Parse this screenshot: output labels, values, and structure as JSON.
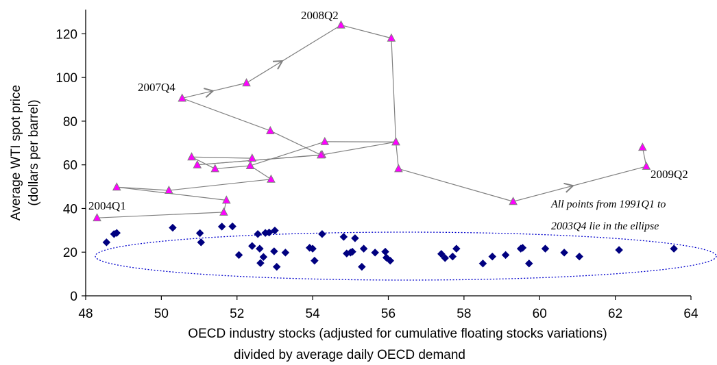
{
  "chart_data": {
    "type": "scatter",
    "title": "",
    "xlabel_lines": [
      "OECD industry stocks (adjusted for cumulative floating stocks variations)",
      "divided by average daily OECD demand"
    ],
    "ylabel_lines": [
      "Average WTI spot price",
      "(dollars per barrel)"
    ],
    "xlim": [
      48,
      64
    ],
    "ylim": [
      0,
      130
    ],
    "x_ticks": [
      48,
      50,
      52,
      54,
      56,
      58,
      60,
      62,
      64
    ],
    "y_ticks": [
      0,
      20,
      40,
      60,
      80,
      100,
      120
    ],
    "grid": false,
    "series": [
      {
        "marker": "diamond",
        "color": "#000080",
        "points": [
          [
            48.55,
            24.5
          ],
          [
            48.75,
            28.3
          ],
          [
            48.82,
            28.8
          ],
          [
            50.3,
            31.2
          ],
          [
            51.02,
            28.7
          ],
          [
            51.05,
            24.5
          ],
          [
            51.6,
            31.7
          ],
          [
            51.88,
            31.8
          ],
          [
            52.05,
            18.7
          ],
          [
            52.4,
            22.8
          ],
          [
            52.55,
            28.3
          ],
          [
            52.6,
            21.6
          ],
          [
            52.62,
            15.0
          ],
          [
            52.7,
            17.8
          ],
          [
            52.75,
            28.8
          ],
          [
            52.85,
            29.0
          ],
          [
            52.98,
            20.4
          ],
          [
            53.0,
            29.9
          ],
          [
            53.05,
            13.3
          ],
          [
            53.28,
            19.8
          ],
          [
            53.92,
            22.0
          ],
          [
            54.0,
            21.6
          ],
          [
            54.05,
            16.1
          ],
          [
            54.25,
            28.3
          ],
          [
            54.82,
            27.0
          ],
          [
            54.9,
            19.4
          ],
          [
            55.0,
            19.8
          ],
          [
            55.05,
            20.2
          ],
          [
            55.12,
            26.4
          ],
          [
            55.3,
            13.3
          ],
          [
            55.35,
            21.6
          ],
          [
            55.65,
            19.8
          ],
          [
            55.92,
            20.2
          ],
          [
            55.95,
            17.5
          ],
          [
            56.05,
            16.1
          ],
          [
            57.4,
            19.2
          ],
          [
            57.5,
            17.3
          ],
          [
            57.7,
            18.0
          ],
          [
            57.8,
            21.6
          ],
          [
            58.5,
            14.8
          ],
          [
            58.75,
            18.0
          ],
          [
            59.1,
            18.7
          ],
          [
            59.5,
            21.6
          ],
          [
            59.55,
            22.0
          ],
          [
            59.72,
            14.8
          ],
          [
            60.15,
            21.6
          ],
          [
            60.65,
            19.8
          ],
          [
            61.05,
            18.0
          ],
          [
            62.1,
            21.0
          ],
          [
            63.55,
            21.6
          ]
        ]
      },
      {
        "marker": "triangle",
        "color": "#ff00ff",
        "connected": true,
        "points": [
          [
            48.3,
            35.7
          ],
          [
            51.65,
            38.3
          ],
          [
            51.72,
            43.8
          ],
          [
            48.82,
            49.8
          ],
          [
            50.2,
            48.3
          ],
          [
            52.9,
            53.4
          ],
          [
            52.35,
            59.6
          ],
          [
            51.42,
            58.2
          ],
          [
            50.8,
            63.6
          ],
          [
            52.4,
            63.0
          ],
          [
            52.35,
            59.6
          ],
          [
            54.32,
            70.6
          ],
          [
            56.2,
            70.5
          ],
          [
            54.25,
            64.6
          ],
          [
            50.95,
            60.0
          ],
          [
            54.22,
            64.5
          ],
          [
            52.88,
            75.6
          ],
          [
            50.55,
            90.5
          ],
          [
            52.25,
            97.5
          ],
          [
            54.75,
            124.0
          ],
          [
            56.08,
            118.0
          ],
          [
            56.2,
            70.5
          ],
          [
            56.27,
            58.2
          ],
          [
            59.3,
            43.2
          ],
          [
            62.82,
            59.3
          ],
          [
            62.72,
            68.0
          ]
        ]
      }
    ],
    "annotations": {
      "label_2004q1": "2004Q1",
      "label_2007q4": "2007Q4",
      "label_2008q2": "2008Q2",
      "label_2009q2": "2009Q2",
      "ellipse_note_line1": "All points from 1991Q1 to",
      "ellipse_note_line2": "2003Q4 lie in the ellipse"
    }
  }
}
